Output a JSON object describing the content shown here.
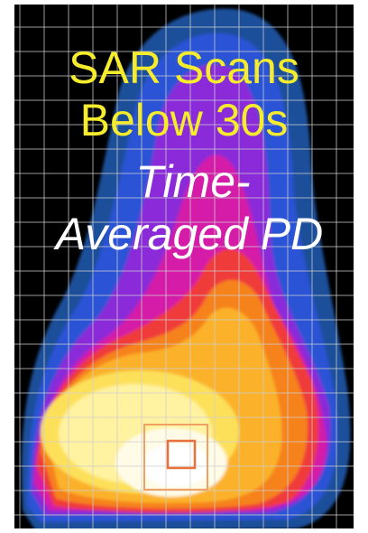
{
  "title": {
    "lines": [
      "SAR Scans",
      "Below 30s"
    ]
  },
  "subtitle": {
    "lines": [
      "Time-",
      "Averaged PD"
    ]
  }
}
